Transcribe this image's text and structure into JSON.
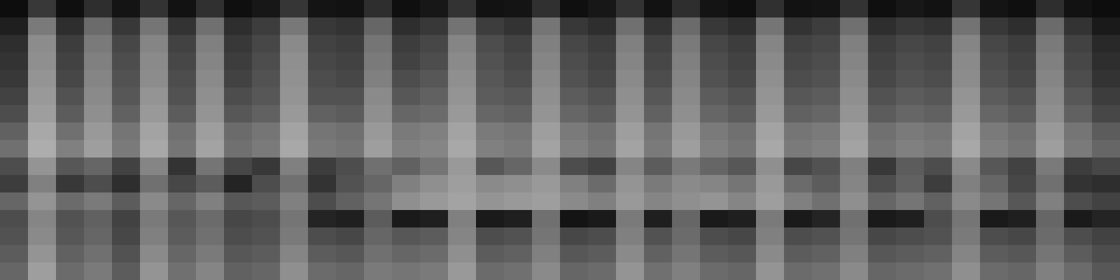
{
  "chart_data": {
    "type": "heatmap",
    "tick_labels": false,
    "cells": [
      [
        5,
        22,
        6,
        18,
        8,
        20,
        7,
        19,
        6,
        9,
        21,
        8,
        7,
        18,
        6,
        9,
        20,
        7,
        8,
        19,
        6,
        9,
        20,
        7,
        18,
        8,
        6,
        19,
        7,
        8,
        20,
        6,
        9,
        7,
        21,
        8,
        6,
        18,
        7,
        5
      ],
      [
        12,
        48,
        18,
        42,
        22,
        46,
        20,
        44,
        18,
        24,
        47,
        22,
        20,
        40,
        18,
        22,
        45,
        24,
        20,
        46,
        22,
        18,
        44,
        20,
        42,
        22,
        18,
        46,
        20,
        24,
        44,
        18,
        22,
        20,
        45,
        22,
        18,
        42,
        20,
        10
      ],
      [
        18,
        55,
        24,
        48,
        28,
        52,
        26,
        50,
        22,
        28,
        54,
        26,
        24,
        46,
        24,
        28,
        52,
        30,
        26,
        50,
        28,
        24,
        50,
        26,
        48,
        28,
        24,
        52,
        26,
        28,
        50,
        24,
        28,
        26,
        52,
        28,
        24,
        48,
        26,
        16
      ],
      [
        20,
        56,
        26,
        50,
        30,
        54,
        28,
        52,
        24,
        30,
        56,
        28,
        26,
        48,
        26,
        30,
        54,
        32,
        28,
        52,
        30,
        26,
        52,
        28,
        50,
        30,
        26,
        54,
        28,
        30,
        52,
        26,
        30,
        28,
        54,
        30,
        26,
        50,
        28,
        18
      ],
      [
        22,
        58,
        28,
        52,
        32,
        55,
        30,
        54,
        26,
        32,
        57,
        30,
        28,
        50,
        30,
        34,
        56,
        34,
        30,
        54,
        32,
        28,
        54,
        30,
        52,
        32,
        28,
        56,
        30,
        32,
        54,
        28,
        32,
        30,
        55,
        32,
        28,
        52,
        30,
        20
      ],
      [
        26,
        60,
        32,
        54,
        34,
        58,
        32,
        56,
        30,
        34,
        58,
        32,
        32,
        54,
        34,
        38,
        58,
        36,
        34,
        56,
        36,
        32,
        56,
        34,
        54,
        36,
        32,
        58,
        34,
        36,
        56,
        32,
        36,
        34,
        58,
        36,
        32,
        54,
        34,
        24
      ],
      [
        30,
        62,
        36,
        56,
        38,
        60,
        36,
        58,
        34,
        38,
        60,
        38,
        36,
        56,
        40,
        42,
        60,
        40,
        38,
        58,
        40,
        36,
        58,
        38,
        56,
        40,
        36,
        60,
        38,
        40,
        58,
        36,
        40,
        38,
        60,
        40,
        36,
        56,
        38,
        28
      ],
      [
        38,
        66,
        44,
        60,
        46,
        64,
        44,
        62,
        42,
        46,
        64,
        46,
        44,
        60,
        48,
        50,
        64,
        48,
        46,
        62,
        48,
        44,
        62,
        46,
        60,
        48,
        44,
        64,
        46,
        48,
        62,
        44,
        48,
        46,
        64,
        48,
        44,
        60,
        46,
        36
      ],
      [
        44,
        68,
        50,
        62,
        48,
        66,
        46,
        64,
        44,
        48,
        66,
        48,
        46,
        62,
        50,
        52,
        66,
        50,
        48,
        64,
        50,
        46,
        64,
        48,
        62,
        50,
        46,
        66,
        48,
        50,
        64,
        46,
        50,
        48,
        66,
        50,
        46,
        62,
        48,
        40
      ],
      [
        30,
        58,
        34,
        40,
        26,
        52,
        20,
        46,
        28,
        22,
        50,
        24,
        30,
        44,
        38,
        46,
        60,
        34,
        40,
        54,
        30,
        26,
        52,
        36,
        48,
        40,
        34,
        56,
        28,
        32,
        50,
        22,
        36,
        30,
        54,
        34,
        26,
        48,
        24,
        28
      ],
      [
        24,
        50,
        22,
        30,
        18,
        44,
        28,
        36,
        14,
        30,
        44,
        20,
        32,
        40,
        50,
        56,
        62,
        54,
        56,
        60,
        50,
        42,
        58,
        48,
        54,
        52,
        46,
        60,
        42,
        36,
        52,
        30,
        38,
        24,
        50,
        40,
        28,
        44,
        20,
        18
      ],
      [
        40,
        58,
        42,
        48,
        36,
        54,
        40,
        50,
        34,
        36,
        50,
        30,
        38,
        46,
        56,
        60,
        64,
        58,
        60,
        62,
        54,
        50,
        60,
        52,
        56,
        58,
        52,
        62,
        50,
        44,
        56,
        40,
        46,
        38,
        54,
        46,
        34,
        50,
        30,
        26
      ],
      [
        30,
        52,
        32,
        38,
        26,
        48,
        34,
        42,
        28,
        30,
        46,
        14,
        12,
        36,
        10,
        12,
        50,
        10,
        12,
        44,
        8,
        10,
        48,
        12,
        40,
        10,
        12,
        48,
        10,
        14,
        44,
        10,
        12,
        30,
        46,
        10,
        12,
        40,
        10,
        14
      ],
      [
        32,
        54,
        34,
        40,
        28,
        50,
        36,
        44,
        30,
        32,
        48,
        30,
        28,
        40,
        34,
        36,
        52,
        30,
        32,
        46,
        28,
        30,
        50,
        32,
        42,
        30,
        28,
        50,
        30,
        32,
        46,
        28,
        30,
        32,
        48,
        30,
        28,
        42,
        30,
        26
      ],
      [
        36,
        58,
        38,
        44,
        32,
        54,
        40,
        48,
        34,
        36,
        52,
        36,
        34,
        44,
        40,
        42,
        56,
        36,
        38,
        50,
        34,
        36,
        54,
        38,
        46,
        36,
        34,
        54,
        36,
        38,
        50,
        34,
        36,
        38,
        52,
        36,
        34,
        46,
        36,
        30
      ],
      [
        40,
        62,
        42,
        48,
        36,
        58,
        44,
        52,
        38,
        40,
        56,
        42,
        40,
        48,
        46,
        48,
        60,
        42,
        44,
        54,
        40,
        42,
        58,
        44,
        50,
        42,
        40,
        58,
        42,
        44,
        54,
        40,
        42,
        44,
        56,
        42,
        40,
        50,
        42,
        34
      ]
    ]
  }
}
